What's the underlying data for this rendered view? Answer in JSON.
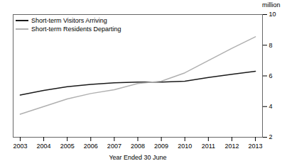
{
  "chart_data": {
    "type": "line",
    "xlabel": "Year Ended 30 June",
    "ylabel": "million",
    "x": [
      2003,
      2004,
      2005,
      2006,
      2007,
      2008,
      2009,
      2010,
      2011,
      2012,
      2013
    ],
    "series": [
      {
        "name": "Short-term Visitors Arriving",
        "color": "#1a1a1a",
        "values": [
          4.75,
          5.05,
          5.3,
          5.45,
          5.55,
          5.6,
          5.6,
          5.65,
          5.9,
          6.1,
          6.3
        ]
      },
      {
        "name": "Short-term Residents Departing",
        "color": "#b0b0b0",
        "values": [
          3.5,
          4.0,
          4.5,
          4.85,
          5.1,
          5.5,
          5.65,
          6.2,
          7.0,
          7.8,
          8.55
        ]
      }
    ],
    "xlim": [
      2002.7,
      2013.3
    ],
    "xticks": [
      2003,
      2004,
      2005,
      2006,
      2007,
      2008,
      2009,
      2010,
      2011,
      2012,
      2013
    ],
    "ylim": [
      2,
      10
    ],
    "yticks": [
      2,
      4,
      6,
      8,
      10
    ],
    "legend": "upper left",
    "grid": false
  }
}
